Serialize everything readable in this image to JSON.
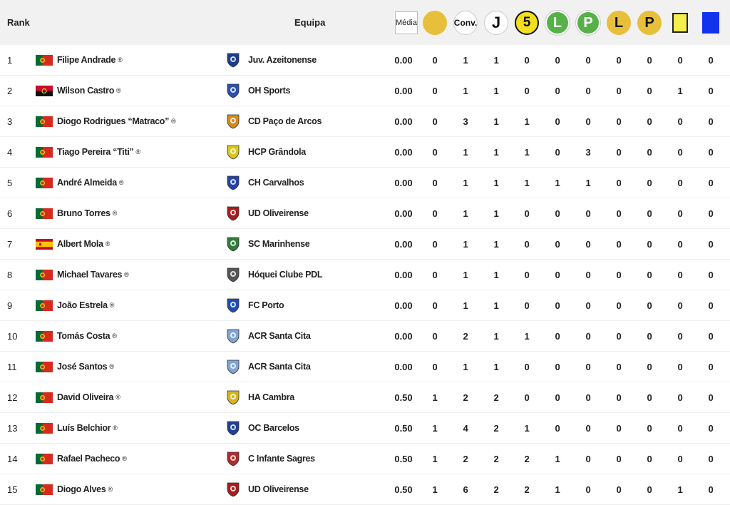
{
  "header": {
    "rank": "Rank",
    "team": "Equipa",
    "media": "Média",
    "conv": "Conv.",
    "j": "J",
    "five": "5",
    "l1": "L",
    "p1": "P",
    "l2": "L",
    "p2": "P",
    "icons": [
      "yellow-dot-icon",
      "conv-icon",
      "j-icon",
      "five-icon",
      "l-green-icon",
      "p-green-icon",
      "l-gold-icon",
      "p-gold-icon",
      "yellow-card-icon",
      "blue-card-icon"
    ]
  },
  "colors": {
    "gold": "#e8bf3a",
    "green": "#56b148",
    "yellow_card": "#f4ef4a",
    "blue_card": "#1133ee",
    "header_bg": "#f1f1f1"
  },
  "reg_mark": "®",
  "rows": [
    {
      "rank": "1",
      "flag": "pt",
      "player": "Filipe Andrade",
      "team": "Juv. Azeitonense",
      "crest": "#1a3d8f",
      "media": "0.00",
      "v": [
        "0",
        "1",
        "1",
        "0",
        "0",
        "0",
        "0",
        "0",
        "0",
        "0"
      ]
    },
    {
      "rank": "2",
      "flag": "ao",
      "player": "Wilson Castro",
      "team": "OH Sports",
      "crest": "#2a4fb0",
      "media": "0.00",
      "v": [
        "0",
        "1",
        "1",
        "0",
        "0",
        "0",
        "0",
        "0",
        "1",
        "0"
      ]
    },
    {
      "rank": "3",
      "flag": "pt",
      "player": "Diogo Rodrigues “Matraco”",
      "team": "CD Paço de Arcos",
      "crest": "#d58a1e",
      "media": "0.00",
      "v": [
        "0",
        "3",
        "1",
        "1",
        "0",
        "0",
        "0",
        "0",
        "0",
        "0"
      ]
    },
    {
      "rank": "4",
      "flag": "pt",
      "player": "Tiago Pereira “Titi”",
      "team": "HCP Grândola",
      "crest": "#d9c522",
      "media": "0.00",
      "v": [
        "0",
        "1",
        "1",
        "1",
        "0",
        "3",
        "0",
        "0",
        "0",
        "0"
      ]
    },
    {
      "rank": "5",
      "flag": "pt",
      "player": "André Almeida",
      "team": "CH Carvalhos",
      "crest": "#2243a8",
      "media": "0.00",
      "v": [
        "0",
        "1",
        "1",
        "1",
        "1",
        "1",
        "0",
        "0",
        "0",
        "0"
      ]
    },
    {
      "rank": "6",
      "flag": "pt",
      "player": "Bruno Torres",
      "team": "UD Oliveirense",
      "crest": "#a81c1c",
      "media": "0.00",
      "v": [
        "0",
        "1",
        "1",
        "0",
        "0",
        "0",
        "0",
        "0",
        "0",
        "0"
      ]
    },
    {
      "rank": "7",
      "flag": "es",
      "player": "Albert Mola",
      "team": "SC Marinhense",
      "crest": "#2e7d3a",
      "media": "0.00",
      "v": [
        "0",
        "1",
        "1",
        "0",
        "0",
        "0",
        "0",
        "0",
        "0",
        "0"
      ]
    },
    {
      "rank": "8",
      "flag": "pt",
      "player": "Michael Tavares",
      "team": "Hóquei Clube PDL",
      "crest": "#555555",
      "media": "0.00",
      "v": [
        "0",
        "1",
        "1",
        "0",
        "0",
        "0",
        "0",
        "0",
        "0",
        "0"
      ]
    },
    {
      "rank": "9",
      "flag": "pt",
      "player": "João Estrela",
      "team": "FC Porto",
      "crest": "#1b4fb5",
      "media": "0.00",
      "v": [
        "0",
        "1",
        "1",
        "0",
        "0",
        "0",
        "0",
        "0",
        "0",
        "0"
      ]
    },
    {
      "rank": "10",
      "flag": "pt",
      "player": "Tomás Costa",
      "team": "ACR Santa Cita",
      "crest": "#7fa4d6",
      "media": "0.00",
      "v": [
        "0",
        "2",
        "1",
        "1",
        "0",
        "0",
        "0",
        "0",
        "0",
        "0"
      ]
    },
    {
      "rank": "11",
      "flag": "pt",
      "player": "José Santos",
      "team": "ACR Santa Cita",
      "crest": "#7fa4d6",
      "media": "0.00",
      "v": [
        "0",
        "1",
        "1",
        "0",
        "0",
        "0",
        "0",
        "0",
        "0",
        "0"
      ]
    },
    {
      "rank": "12",
      "flag": "pt",
      "player": "David Oliveira",
      "team": "HA Cambra",
      "crest": "#d6b21d",
      "media": "0.50",
      "v": [
        "1",
        "2",
        "2",
        "0",
        "0",
        "0",
        "0",
        "0",
        "0",
        "0"
      ]
    },
    {
      "rank": "13",
      "flag": "pt",
      "player": "Luís Belchior",
      "team": "OC Barcelos",
      "crest": "#1f3f9a",
      "media": "0.50",
      "v": [
        "1",
        "4",
        "2",
        "1",
        "0",
        "0",
        "0",
        "0",
        "0",
        "0"
      ]
    },
    {
      "rank": "14",
      "flag": "pt",
      "player": "Rafael Pacheco",
      "team": "C Infante Sagres",
      "crest": "#b32a2a",
      "media": "0.50",
      "v": [
        "1",
        "2",
        "2",
        "2",
        "1",
        "0",
        "0",
        "0",
        "0",
        "0"
      ]
    },
    {
      "rank": "15",
      "flag": "pt",
      "player": "Diogo Alves",
      "team": "UD Oliveirense",
      "crest": "#a81c1c",
      "media": "0.50",
      "v": [
        "1",
        "6",
        "2",
        "2",
        "1",
        "0",
        "0",
        "0",
        "1",
        "0"
      ]
    }
  ]
}
